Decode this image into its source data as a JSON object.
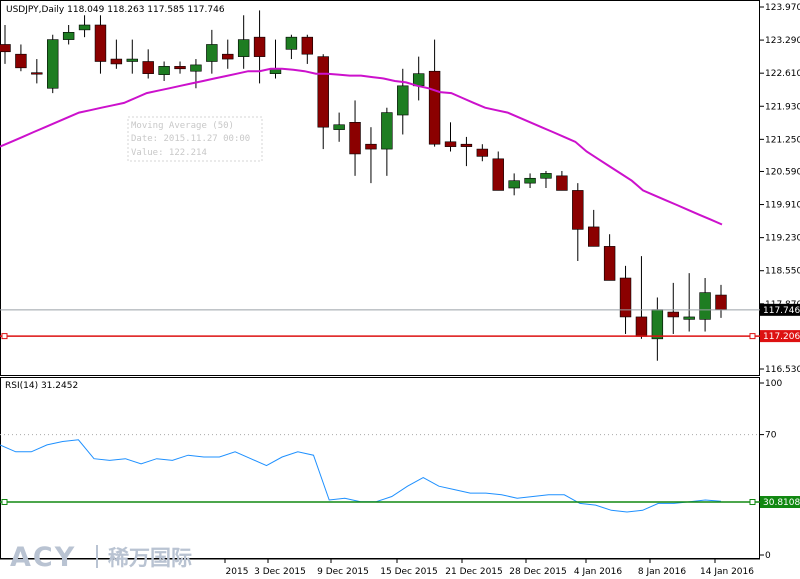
{
  "header": {
    "symbol_tf": "USDJPY,Daily",
    "ohlc": "118.049 118.263 117.585 117.746"
  },
  "tooltip": {
    "line1": "Moving Average (50)",
    "line2": "Date: 2015.11.27 00:00",
    "line3": "Value: 122.214"
  },
  "rsi_label": "RSI(14) 31.2452",
  "logo": {
    "main": "ACY",
    "sub": "稀万国际"
  },
  "colors": {
    "bull": "#1e7d22",
    "bear": "#8b0000",
    "ma": "#cc11cc",
    "rsi": "#1e90ff",
    "hline_price": "#dd1111",
    "hline_rsi": "#118811",
    "grid": "#aaaaaa"
  },
  "chart_data": [
    {
      "type": "candlestick",
      "title": "USDJPY,Daily",
      "y_ticks": [
        "123.970",
        "123.290",
        "122.610",
        "121.930",
        "121.250",
        "120.590",
        "119.910",
        "119.230",
        "118.550",
        "117.870",
        "116.530"
      ],
      "ylim": [
        116.53,
        123.97
      ],
      "x_tick_labels": [
        "2015",
        "3 Dec 2015",
        "9 Dec 2015",
        "15 Dec 2015",
        "21 Dec 2015",
        "28 Dec 2015",
        "4 Jan 2016",
        "8 Jan 2016",
        "14 Jan 2016"
      ],
      "current_price": "117.746",
      "level_line": "117.206",
      "candles": [
        {
          "o": 123.2,
          "h": 123.6,
          "l": 122.8,
          "c": 123.05
        },
        {
          "o": 123.0,
          "h": 123.2,
          "l": 122.65,
          "c": 122.72
        },
        {
          "o": 122.62,
          "h": 122.9,
          "l": 122.4,
          "c": 122.6
        },
        {
          "o": 122.3,
          "h": 123.4,
          "l": 122.2,
          "c": 123.3
        },
        {
          "o": 123.3,
          "h": 123.6,
          "l": 123.2,
          "c": 123.45
        },
        {
          "o": 123.5,
          "h": 123.8,
          "l": 123.35,
          "c": 123.6
        },
        {
          "o": 123.6,
          "h": 123.8,
          "l": 122.6,
          "c": 122.85
        },
        {
          "o": 122.9,
          "h": 123.3,
          "l": 122.7,
          "c": 122.8
        },
        {
          "o": 122.85,
          "h": 123.3,
          "l": 122.6,
          "c": 122.9
        },
        {
          "o": 122.85,
          "h": 123.1,
          "l": 122.5,
          "c": 122.6
        },
        {
          "o": 122.58,
          "h": 122.85,
          "l": 122.45,
          "c": 122.75
        },
        {
          "o": 122.75,
          "h": 122.85,
          "l": 122.6,
          "c": 122.7
        },
        {
          "o": 122.65,
          "h": 122.9,
          "l": 122.3,
          "c": 122.78
        },
        {
          "o": 122.85,
          "h": 123.5,
          "l": 122.6,
          "c": 123.2
        },
        {
          "o": 123.0,
          "h": 123.3,
          "l": 122.7,
          "c": 122.9
        },
        {
          "o": 122.95,
          "h": 123.8,
          "l": 122.7,
          "c": 123.3
        },
        {
          "o": 123.35,
          "h": 123.9,
          "l": 122.4,
          "c": 122.95
        },
        {
          "o": 122.6,
          "h": 123.3,
          "l": 122.5,
          "c": 122.7
        },
        {
          "o": 123.1,
          "h": 123.4,
          "l": 122.9,
          "c": 123.35
        },
        {
          "o": 123.35,
          "h": 123.4,
          "l": 122.8,
          "c": 123.0
        },
        {
          "o": 122.95,
          "h": 123.0,
          "l": 121.05,
          "c": 121.5
        },
        {
          "o": 121.45,
          "h": 121.8,
          "l": 121.2,
          "c": 121.55
        },
        {
          "o": 121.6,
          "h": 122.05,
          "l": 120.5,
          "c": 120.95
        },
        {
          "o": 121.15,
          "h": 121.5,
          "l": 120.35,
          "c": 121.05
        },
        {
          "o": 121.05,
          "h": 121.9,
          "l": 120.5,
          "c": 121.8
        },
        {
          "o": 121.75,
          "h": 122.7,
          "l": 121.35,
          "c": 122.35
        },
        {
          "o": 122.35,
          "h": 122.95,
          "l": 122.05,
          "c": 122.6
        },
        {
          "o": 122.65,
          "h": 123.3,
          "l": 121.1,
          "c": 121.15
        },
        {
          "o": 121.2,
          "h": 121.6,
          "l": 121.0,
          "c": 121.1
        },
        {
          "o": 121.15,
          "h": 121.3,
          "l": 120.7,
          "c": 121.1
        },
        {
          "o": 121.05,
          "h": 121.15,
          "l": 120.8,
          "c": 120.9
        },
        {
          "o": 120.85,
          "h": 121.0,
          "l": 120.2,
          "c": 120.2
        },
        {
          "o": 120.25,
          "h": 120.55,
          "l": 120.1,
          "c": 120.4
        },
        {
          "o": 120.35,
          "h": 120.55,
          "l": 120.25,
          "c": 120.45
        },
        {
          "o": 120.45,
          "h": 120.6,
          "l": 120.25,
          "c": 120.55
        },
        {
          "o": 120.5,
          "h": 120.6,
          "l": 120.2,
          "c": 120.2
        },
        {
          "o": 120.2,
          "h": 120.35,
          "l": 118.75,
          "c": 119.4
        },
        {
          "o": 119.45,
          "h": 119.8,
          "l": 119.05,
          "c": 119.05
        },
        {
          "o": 119.05,
          "h": 119.3,
          "l": 118.35,
          "c": 118.35
        },
        {
          "o": 118.4,
          "h": 118.65,
          "l": 117.25,
          "c": 117.6
        },
        {
          "o": 117.6,
          "h": 118.85,
          "l": 117.15,
          "c": 117.2
        },
        {
          "o": 117.15,
          "h": 118.0,
          "l": 116.7,
          "c": 117.75
        },
        {
          "o": 117.7,
          "h": 118.3,
          "l": 117.25,
          "c": 117.6
        },
        {
          "o": 117.55,
          "h": 118.5,
          "l": 117.3,
          "c": 117.6
        },
        {
          "o": 117.55,
          "h": 118.4,
          "l": 117.3,
          "c": 118.1
        },
        {
          "o": 118.05,
          "h": 118.26,
          "l": 117.58,
          "c": 117.75
        }
      ],
      "moving_average": {
        "name": "Moving Average (50)",
        "values": [
          121.1,
          121.2,
          121.3,
          121.4,
          121.5,
          121.6,
          121.7,
          121.8,
          121.85,
          121.9,
          121.95,
          122.0,
          122.1,
          122.2,
          122.25,
          122.3,
          122.35,
          122.4,
          122.45,
          122.5,
          122.55,
          122.6,
          122.65,
          122.65,
          122.7,
          122.7,
          122.68,
          122.65,
          122.6,
          122.6,
          122.58,
          122.56,
          122.56,
          122.53,
          122.5,
          122.45,
          122.42,
          122.35,
          122.3,
          122.22,
          122.2,
          122.1,
          122.0,
          121.9,
          121.85,
          121.8,
          121.7,
          121.6,
          121.5,
          121.4,
          121.3,
          121.2,
          121.0,
          120.85,
          120.7,
          120.55,
          120.4,
          120.2,
          120.1,
          120.0,
          119.9,
          119.8,
          119.7,
          119.6,
          119.5
        ]
      }
    },
    {
      "type": "line",
      "title": "RSI(14) 31.2452",
      "y_ticks": [
        "100",
        "70",
        "0"
      ],
      "ylim": [
        0,
        100
      ],
      "level_line": "30.8108",
      "series": [
        {
          "name": "RSI(14)",
          "values": [
            64,
            60,
            60,
            64,
            66,
            67,
            56,
            55,
            56,
            53,
            56,
            55,
            58,
            57,
            57,
            60,
            56,
            52,
            57,
            60,
            58,
            32,
            33,
            31,
            31,
            34,
            40,
            45,
            40,
            38,
            36,
            36,
            35,
            33,
            34,
            35,
            35,
            30,
            29,
            26,
            25,
            26,
            30,
            30,
            31,
            32,
            31.25
          ]
        }
      ]
    }
  ]
}
